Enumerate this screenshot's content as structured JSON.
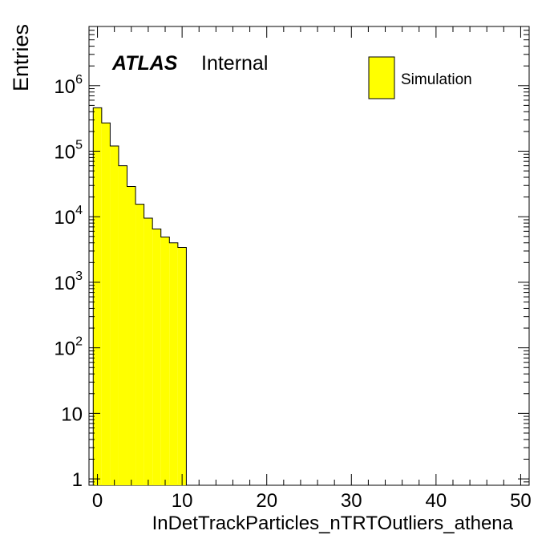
{
  "chart_data": {
    "type": "bar",
    "title": "",
    "xlabel": "InDetTrackParticles_nTRTOutliers_athena",
    "ylabel": "Entries",
    "xlim": [
      -1,
      51
    ],
    "ylim": [
      0.8,
      8000000
    ],
    "log_y": true,
    "grid": false,
    "bar_color": "#ffff00",
    "edge_color": "#000000",
    "x_ticks": [
      "0",
      "10",
      "20",
      "30",
      "40",
      "50"
    ],
    "y_ticks": [
      {
        "base": "1",
        "exp": ""
      },
      {
        "base": "10",
        "exp": ""
      },
      {
        "base": "10",
        "exp": "2"
      },
      {
        "base": "10",
        "exp": "3"
      },
      {
        "base": "10",
        "exp": "4"
      },
      {
        "base": "10",
        "exp": "5"
      },
      {
        "base": "10",
        "exp": "6"
      }
    ],
    "bins": [
      {
        "x0": -0.5,
        "x1": 0.5,
        "value": 460000
      },
      {
        "x0": 0.5,
        "x1": 1.5,
        "value": 270000
      },
      {
        "x0": 1.5,
        "x1": 2.5,
        "value": 120000
      },
      {
        "x0": 2.5,
        "x1": 3.5,
        "value": 60000
      },
      {
        "x0": 3.5,
        "x1": 4.5,
        "value": 29000
      },
      {
        "x0": 4.5,
        "x1": 5.5,
        "value": 15500
      },
      {
        "x0": 5.5,
        "x1": 6.5,
        "value": 9500
      },
      {
        "x0": 6.5,
        "x1": 7.5,
        "value": 6500
      },
      {
        "x0": 7.5,
        "x1": 8.5,
        "value": 4900
      },
      {
        "x0": 8.5,
        "x1": 9.5,
        "value": 4000
      },
      {
        "x0": 9.5,
        "x1": 10.5,
        "value": 3400
      }
    ],
    "legend": {
      "position": "top-right",
      "entries": [
        "Simulation"
      ]
    },
    "label": {
      "experiment": "ATLAS",
      "status": "Internal"
    }
  }
}
